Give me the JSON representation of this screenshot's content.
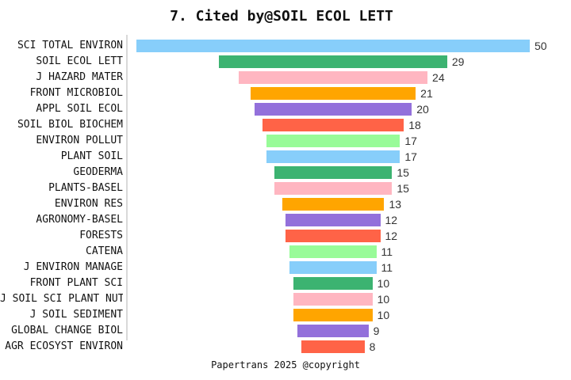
{
  "title": "7. Cited by@SOIL ECOL LETT",
  "footer": "Papertrans 2025 @copyright",
  "chart_data": {
    "type": "bar",
    "subtype": "horizontal-centered-funnel",
    "title": "7. Cited by@SOIL ECOL LETT",
    "categories": [
      "SCI TOTAL ENVIRON",
      "SOIL ECOL LETT",
      "J HAZARD MATER",
      "FRONT MICROBIOL",
      "APPL SOIL ECOL",
      "SOIL BIOL BIOCHEM",
      "ENVIRON POLLUT",
      "PLANT SOIL",
      "GEODERMA",
      "PLANTS-BASEL",
      "ENVIRON RES",
      "AGRONOMY-BASEL",
      "FORESTS",
      "CATENA",
      "J ENVIRON MANAGE",
      "FRONT PLANT SCI",
      "J SOIL SCI PLANT NUT",
      "J SOIL SEDIMENT",
      "GLOBAL CHANGE BIOL",
      "AGR ECOSYST ENVIRON"
    ],
    "values": [
      50,
      29,
      24,
      21,
      20,
      18,
      17,
      17,
      15,
      15,
      13,
      12,
      12,
      11,
      11,
      10,
      10,
      10,
      9,
      8
    ],
    "value_labels_shown": true,
    "xlim": [
      0,
      50
    ],
    "grid": false,
    "legend": "none",
    "palette": [
      "#87CEFA",
      "#3CB371",
      "#FFB6C1",
      "#FFA500",
      "#9370DB",
      "#FF6347",
      "#98FB98"
    ],
    "axis_line_color": "#D9D9D9",
    "label_color": "#111111",
    "value_label_color": "#333333",
    "background_color": "#FFFFFF"
  }
}
